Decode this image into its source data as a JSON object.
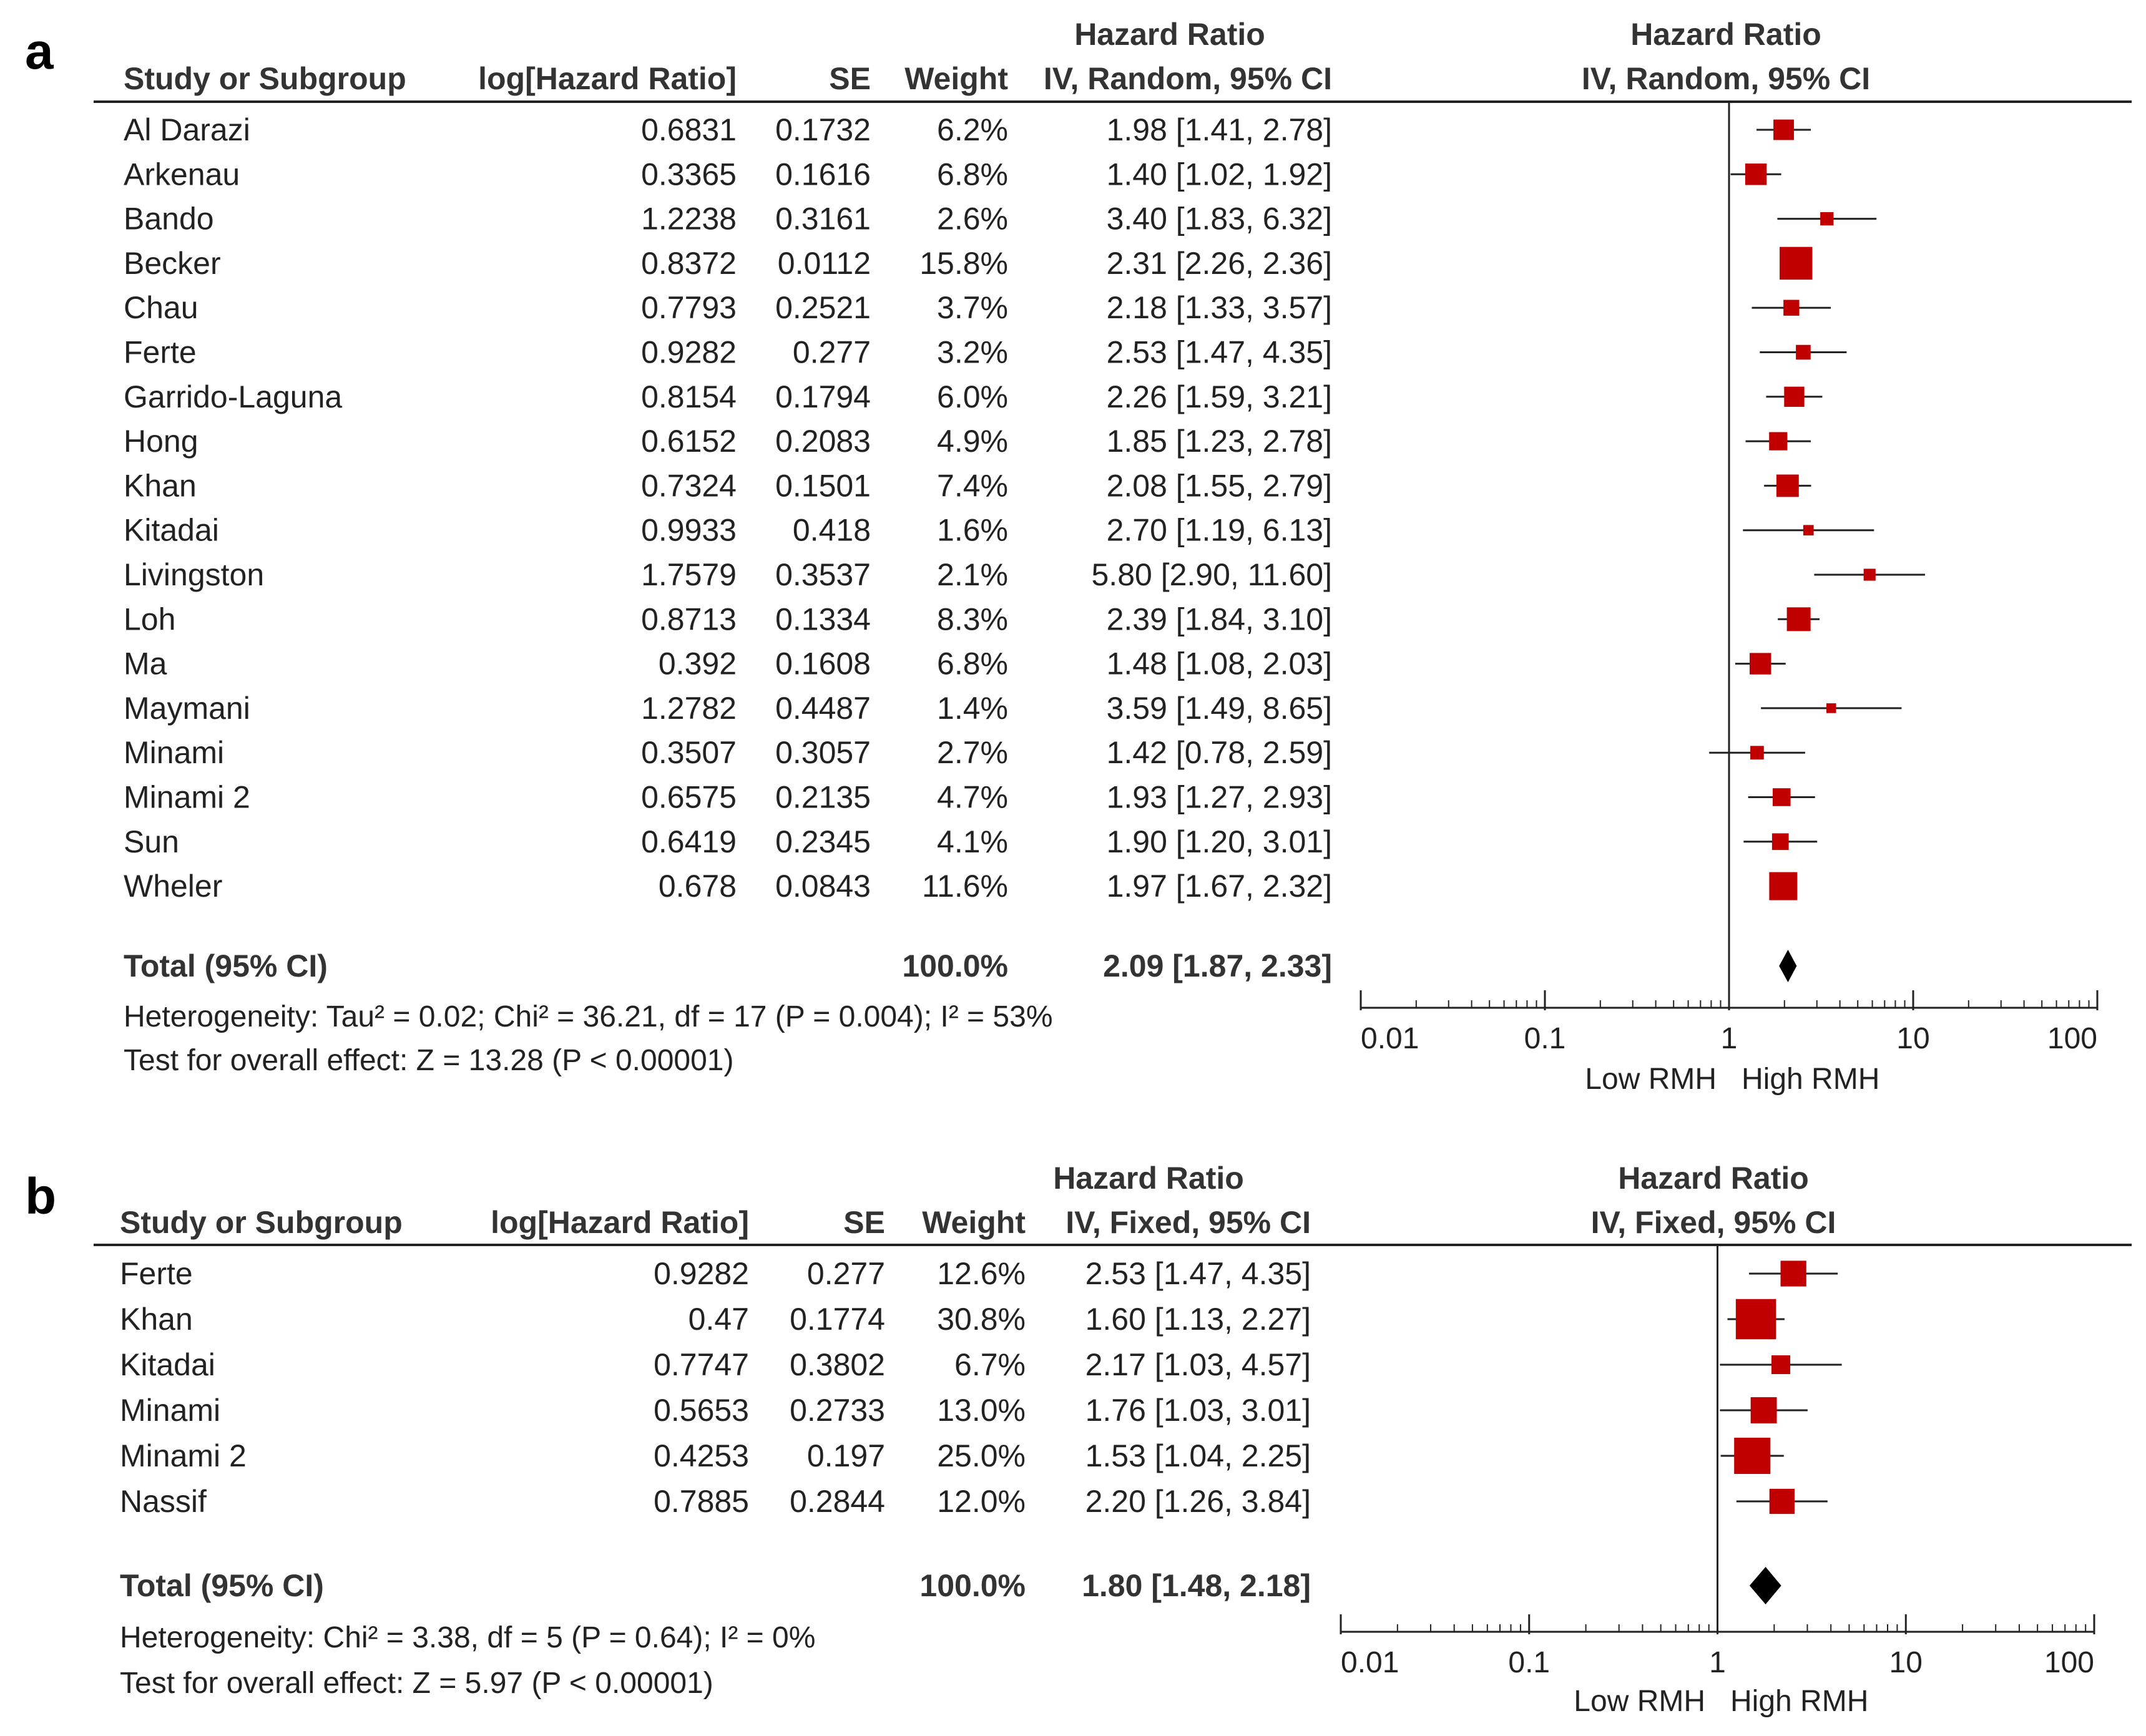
{
  "chart_data": [
    {
      "type": "forest",
      "panel_label": "a",
      "model": "IV, Random, 95% CI",
      "headers": {
        "study": "Study or Subgroup",
        "loghr": "log[Hazard Ratio]",
        "se": "SE",
        "weight": "Weight",
        "hr_top": "Hazard Ratio",
        "hr_sub": "IV, Random, 95% CI",
        "plot_top": "Hazard Ratio",
        "plot_sub": "IV, Random, 95% CI"
      },
      "studies": [
        {
          "name": "Al Darazi",
          "loghr": "0.6831",
          "se": "0.1732",
          "weight": "6.2%",
          "hr_text": "1.98 [1.41, 2.78]",
          "hr": 1.98,
          "lo": 1.41,
          "hi": 2.78,
          "w": 6.2
        },
        {
          "name": "Arkenau",
          "loghr": "0.3365",
          "se": "0.1616",
          "weight": "6.8%",
          "hr_text": "1.40 [1.02, 1.92]",
          "hr": 1.4,
          "lo": 1.02,
          "hi": 1.92,
          "w": 6.8
        },
        {
          "name": "Bando",
          "loghr": "1.2238",
          "se": "0.3161",
          "weight": "2.6%",
          "hr_text": "3.40 [1.83, 6.32]",
          "hr": 3.4,
          "lo": 1.83,
          "hi": 6.32,
          "w": 2.6
        },
        {
          "name": "Becker",
          "loghr": "0.8372",
          "se": "0.0112",
          "weight": "15.8%",
          "hr_text": "2.31 [2.26, 2.36]",
          "hr": 2.31,
          "lo": 2.26,
          "hi": 2.36,
          "w": 15.8
        },
        {
          "name": "Chau",
          "loghr": "0.7793",
          "se": "0.2521",
          "weight": "3.7%",
          "hr_text": "2.18 [1.33, 3.57]",
          "hr": 2.18,
          "lo": 1.33,
          "hi": 3.57,
          "w": 3.7
        },
        {
          "name": "Ferte",
          "loghr": "0.9282",
          "se": "0.277",
          "weight": "3.2%",
          "hr_text": "2.53 [1.47, 4.35]",
          "hr": 2.53,
          "lo": 1.47,
          "hi": 4.35,
          "w": 3.2
        },
        {
          "name": "Garrido-Laguna",
          "loghr": "0.8154",
          "se": "0.1794",
          "weight": "6.0%",
          "hr_text": "2.26 [1.59, 3.21]",
          "hr": 2.26,
          "lo": 1.59,
          "hi": 3.21,
          "w": 6.0
        },
        {
          "name": "Hong",
          "loghr": "0.6152",
          "se": "0.2083",
          "weight": "4.9%",
          "hr_text": "1.85 [1.23, 2.78]",
          "hr": 1.85,
          "lo": 1.23,
          "hi": 2.78,
          "w": 4.9
        },
        {
          "name": "Khan",
          "loghr": "0.7324",
          "se": "0.1501",
          "weight": "7.4%",
          "hr_text": "2.08 [1.55, 2.79]",
          "hr": 2.08,
          "lo": 1.55,
          "hi": 2.79,
          "w": 7.4
        },
        {
          "name": "Kitadai",
          "loghr": "0.9933",
          "se": "0.418",
          "weight": "1.6%",
          "hr_text": "2.70 [1.19, 6.13]",
          "hr": 2.7,
          "lo": 1.19,
          "hi": 6.13,
          "w": 1.6
        },
        {
          "name": "Livingston",
          "loghr": "1.7579",
          "se": "0.3537",
          "weight": "2.1%",
          "hr_text": "5.80 [2.90, 11.60]",
          "hr": 5.8,
          "lo": 2.9,
          "hi": 11.6,
          "w": 2.1
        },
        {
          "name": "Loh",
          "loghr": "0.8713",
          "se": "0.1334",
          "weight": "8.3%",
          "hr_text": "2.39 [1.84, 3.10]",
          "hr": 2.39,
          "lo": 1.84,
          "hi": 3.1,
          "w": 8.3
        },
        {
          "name": "Ma",
          "loghr": "0.392",
          "se": "0.1608",
          "weight": "6.8%",
          "hr_text": "1.48 [1.08, 2.03]",
          "hr": 1.48,
          "lo": 1.08,
          "hi": 2.03,
          "w": 6.8
        },
        {
          "name": "Maymani",
          "loghr": "1.2782",
          "se": "0.4487",
          "weight": "1.4%",
          "hr_text": "3.59 [1.49, 8.65]",
          "hr": 3.59,
          "lo": 1.49,
          "hi": 8.65,
          "w": 1.4
        },
        {
          "name": "Minami",
          "loghr": "0.3507",
          "se": "0.3057",
          "weight": "2.7%",
          "hr_text": "1.42 [0.78, 2.59]",
          "hr": 1.42,
          "lo": 0.78,
          "hi": 2.59,
          "w": 2.7
        },
        {
          "name": "Minami 2",
          "loghr": "0.6575",
          "se": "0.2135",
          "weight": "4.7%",
          "hr_text": "1.93 [1.27, 2.93]",
          "hr": 1.93,
          "lo": 1.27,
          "hi": 2.93,
          "w": 4.7
        },
        {
          "name": "Sun",
          "loghr": "0.6419",
          "se": "0.2345",
          "weight": "4.1%",
          "hr_text": "1.90 [1.20, 3.01]",
          "hr": 1.9,
          "lo": 1.2,
          "hi": 3.01,
          "w": 4.1
        },
        {
          "name": "Wheler",
          "loghr": "0.678",
          "se": "0.0843",
          "weight": "11.6%",
          "hr_text": "1.97 [1.67, 2.32]",
          "hr": 1.97,
          "lo": 1.67,
          "hi": 2.32,
          "w": 11.6
        }
      ],
      "total": {
        "label": "Total (95% CI)",
        "weight": "100.0%",
        "hr_text": "2.09 [1.87, 2.33]",
        "hr": 2.09,
        "lo": 1.87,
        "hi": 2.33
      },
      "heterogeneity": "Heterogeneity: Tau² = 0.02; Chi² = 36.21, df = 17 (P = 0.004); I² = 53%",
      "overall_effect": "Test for overall effect: Z = 13.28 (P < 0.00001)",
      "x_axis": {
        "scale": "log",
        "range": [
          0.01,
          100
        ],
        "ticks": [
          "0.01",
          "0.1",
          "1",
          "10",
          "100"
        ]
      },
      "axis_labels": {
        "left": "Low RMH",
        "right": "High RMH"
      }
    },
    {
      "type": "forest",
      "panel_label": "b",
      "model": "IV, Fixed, 95% CI",
      "headers": {
        "study": "Study or Subgroup",
        "loghr": "log[Hazard Ratio]",
        "se": "SE",
        "weight": "Weight",
        "hr_top": "Hazard Ratio",
        "hr_sub": "IV, Fixed, 95% CI",
        "plot_top": "Hazard Ratio",
        "plot_sub": "IV, Fixed, 95% CI"
      },
      "studies": [
        {
          "name": "Ferte",
          "loghr": "0.9282",
          "se": "0.277",
          "weight": "12.6%",
          "hr_text": "2.53 [1.47, 4.35]",
          "hr": 2.53,
          "lo": 1.47,
          "hi": 4.35,
          "w": 12.6
        },
        {
          "name": "Khan",
          "loghr": "0.47",
          "se": "0.1774",
          "weight": "30.8%",
          "hr_text": "1.60 [1.13, 2.27]",
          "hr": 1.6,
          "lo": 1.13,
          "hi": 2.27,
          "w": 30.8
        },
        {
          "name": "Kitadai",
          "loghr": "0.7747",
          "se": "0.3802",
          "weight": "6.7%",
          "hr_text": "2.17 [1.03, 4.57]",
          "hr": 2.17,
          "lo": 1.03,
          "hi": 4.57,
          "w": 6.7
        },
        {
          "name": "Minami",
          "loghr": "0.5653",
          "se": "0.2733",
          "weight": "13.0%",
          "hr_text": "1.76 [1.03, 3.01]",
          "hr": 1.76,
          "lo": 1.03,
          "hi": 3.01,
          "w": 13.0
        },
        {
          "name": "Minami 2",
          "loghr": "0.4253",
          "se": "0.197",
          "weight": "25.0%",
          "hr_text": "1.53 [1.04, 2.25]",
          "hr": 1.53,
          "lo": 1.04,
          "hi": 2.25,
          "w": 25.0
        },
        {
          "name": "Nassif",
          "loghr": "0.7885",
          "se": "0.2844",
          "weight": "12.0%",
          "hr_text": "2.20 [1.26, 3.84]",
          "hr": 2.2,
          "lo": 1.26,
          "hi": 3.84,
          "w": 12.0
        }
      ],
      "total": {
        "label": "Total (95% CI)",
        "weight": "100.0%",
        "hr_text": "1.80 [1.48, 2.18]",
        "hr": 1.8,
        "lo": 1.48,
        "hi": 2.18
      },
      "heterogeneity": "Heterogeneity: Chi² = 3.38, df = 5 (P = 0.64); I² = 0%",
      "overall_effect": "Test for overall effect: Z = 5.97 (P < 0.00001)",
      "x_axis": {
        "scale": "log",
        "range": [
          0.01,
          100
        ],
        "ticks": [
          "0.01",
          "0.1",
          "1",
          "10",
          "100"
        ]
      },
      "axis_labels": {
        "left": "Low RMH",
        "right": "High RMH"
      }
    }
  ],
  "colors": {
    "marker": "#c00000",
    "line": "#222222",
    "text": "#222222",
    "diamond": "#000000"
  }
}
